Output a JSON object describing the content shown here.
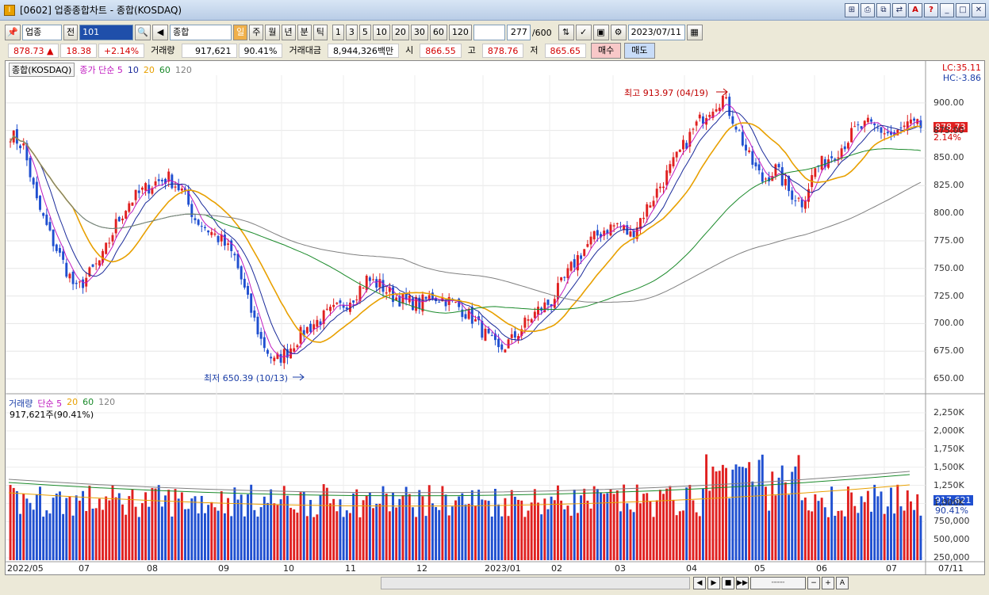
{
  "window": {
    "title": "[0602] 업종종합차트 - 종합(KOSDAQ)",
    "app_icon": "I",
    "controls": [
      "⊞",
      "⎙",
      "⧉",
      "⇄",
      "A",
      "?",
      "_",
      "□",
      "✕"
    ]
  },
  "toolbar": {
    "sector_select": "업종",
    "prev_label": "전",
    "code_value": "101",
    "market_name": "종합(KOSDAQ)",
    "periods": [
      "일",
      "주",
      "월",
      "년",
      "분",
      "틱"
    ],
    "numbers": [
      "1",
      "3",
      "5",
      "10",
      "20",
      "30",
      "60",
      "120"
    ],
    "count_value": "277",
    "count_total": "/600",
    "date_value": "2023/07/11"
  },
  "quote": {
    "price": "878.73 ▲",
    "change": "18.38",
    "pct": "+2.14%",
    "volume_label": "거래량",
    "volume": "917,621",
    "volume_pct": "90.41%",
    "amount_label": "거래대금",
    "amount": "8,944,326백만",
    "open_label": "시",
    "open": "866.55",
    "high_label": "고",
    "high": "878.76",
    "low_label": "저",
    "low": "865.65",
    "buy_label": "매수",
    "sell_label": "매도"
  },
  "price_legend": {
    "name": "종합(KOSDAQ)",
    "type": "종가 단순 5",
    "ma": [
      "10",
      "20",
      "60",
      "120"
    ]
  },
  "volume_legend": {
    "name": "거래량",
    "type": "단순 5",
    "ma": [
      "20",
      "60",
      "120"
    ],
    "current": "917,621주(90.41%)"
  },
  "right_info": {
    "lc": "LC:35.11",
    "hc": "HC:-3.86",
    "last_price": "878.73",
    "last_pct": "2.14%",
    "last_volume": "917,621",
    "last_volume_pct": "90.41%"
  },
  "annotations": {
    "high": "최고 913.97 (04/19)",
    "low": "최저 650.39 (10/13)"
  },
  "chart_data": {
    "type": "candlestick",
    "price_axis": [
      "900.00",
      "875.00",
      "850.00",
      "825.00",
      "800.00",
      "775.00",
      "750.00",
      "725.00",
      "700.00",
      "675.00",
      "650.00"
    ],
    "volume_axis": [
      "2,250K",
      "2,000K",
      "1,750K",
      "1,500K",
      "1,250K",
      "1,000K",
      "750,000",
      "500,000",
      "250,000"
    ],
    "x_labels": [
      "2022/05",
      "07",
      "08",
      "09",
      "10",
      "11",
      "12",
      "2023/01",
      "02",
      "03",
      "04",
      "05",
      "06",
      "07",
      "07/11"
    ],
    "ylim": [
      640,
      925
    ],
    "close_path": [
      872,
      860,
      810,
      780,
      755,
      730,
      745,
      760,
      790,
      810,
      820,
      828,
      832,
      820,
      795,
      785,
      775,
      760,
      720,
      685,
      665,
      675,
      690,
      700,
      708,
      715,
      725,
      740,
      735,
      725,
      720,
      718,
      725,
      722,
      715,
      705,
      690,
      675,
      685,
      700,
      712,
      720,
      740,
      760,
      775,
      785,
      790,
      780,
      800,
      820,
      840,
      860,
      880,
      895,
      905,
      880,
      850,
      830,
      840,
      820,
      810,
      840,
      850,
      860,
      875,
      880,
      875,
      870,
      880,
      878
    ]
  },
  "colors": {
    "up": "#e02020",
    "down": "#1f4fd0",
    "ma5": "#c01ac0",
    "ma10": "#1a2a9a",
    "ma20": "#e8a000",
    "ma60": "#1a8a2a",
    "ma120": "#808080"
  }
}
